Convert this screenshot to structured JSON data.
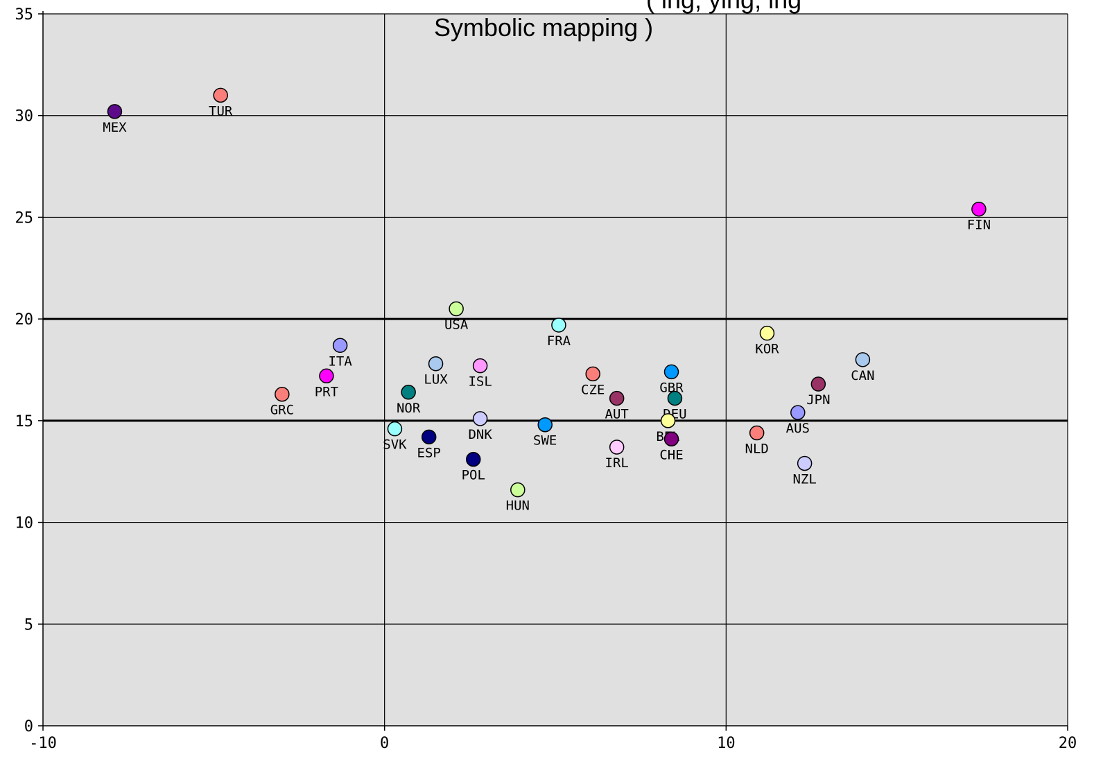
{
  "chart_data": {
    "type": "scatter",
    "title_lines": [
      "(         ing,       ying,       ing",
      "Symbolic mapping )"
    ],
    "xlabel": "",
    "ylabel": "",
    "xlim": [
      -10,
      20
    ],
    "ylim": [
      0,
      35
    ],
    "x_ticks": [
      -10,
      0,
      10,
      20
    ],
    "y_ticks": [
      0,
      5,
      10,
      15,
      20,
      25,
      30,
      35
    ],
    "grid": true,
    "reference_lines_y": [
      15,
      20
    ],
    "points": [
      {
        "label": "MEX",
        "x": -7.9,
        "y": 30.2,
        "color": "#5c0a8a"
      },
      {
        "label": "TUR",
        "x": -4.8,
        "y": 31.0,
        "color": "#fa7f7a"
      },
      {
        "label": "FIN",
        "x": 17.4,
        "y": 25.4,
        "color": "#ff00ff"
      },
      {
        "label": "USA",
        "x": 2.1,
        "y": 20.5,
        "color": "#ccff99"
      },
      {
        "label": "FRA",
        "x": 5.1,
        "y": 19.7,
        "color": "#99ffff"
      },
      {
        "label": "KOR",
        "x": 11.2,
        "y": 19.3,
        "color": "#ffff99"
      },
      {
        "label": "ITA",
        "x": -1.3,
        "y": 18.7,
        "color": "#9999ff"
      },
      {
        "label": "CAN",
        "x": 14.0,
        "y": 18.0,
        "color": "#a9c9ee"
      },
      {
        "label": "LUX",
        "x": 1.5,
        "y": 17.8,
        "color": "#a9c9ee"
      },
      {
        "label": "ISL",
        "x": 2.8,
        "y": 17.7,
        "color": "#ff99ff"
      },
      {
        "label": "GBR",
        "x": 8.4,
        "y": 17.4,
        "color": "#0099ff"
      },
      {
        "label": "CZE",
        "x": 6.1,
        "y": 17.3,
        "color": "#fa7f7a"
      },
      {
        "label": "PRT",
        "x": -1.7,
        "y": 17.2,
        "color": "#ff00ff"
      },
      {
        "label": "JPN",
        "x": 12.7,
        "y": 16.8,
        "color": "#993366"
      },
      {
        "label": "NOR",
        "x": 0.7,
        "y": 16.4,
        "color": "#008080"
      },
      {
        "label": "GRC",
        "x": -3.0,
        "y": 16.3,
        "color": "#fa7f7a"
      },
      {
        "label": "DEU",
        "x": 8.5,
        "y": 16.1,
        "color": "#008080"
      },
      {
        "label": "AUT",
        "x": 6.8,
        "y": 16.1,
        "color": "#993366"
      },
      {
        "label": "AUS",
        "x": 12.1,
        "y": 15.4,
        "color": "#9999ff"
      },
      {
        "label": "DNK",
        "x": 2.8,
        "y": 15.1,
        "color": "#ccccff"
      },
      {
        "label": "BEL",
        "x": 8.3,
        "y": 15.0,
        "color": "#ffff99"
      },
      {
        "label": "SWE",
        "x": 4.7,
        "y": 14.8,
        "color": "#0099ff"
      },
      {
        "label": "SVK",
        "x": 0.3,
        "y": 14.6,
        "color": "#99ffff"
      },
      {
        "label": "NLD",
        "x": 10.9,
        "y": 14.4,
        "color": "#fa7f7a"
      },
      {
        "label": "ESP",
        "x": 1.3,
        "y": 14.2,
        "color": "#000080"
      },
      {
        "label": "CHE",
        "x": 8.4,
        "y": 14.1,
        "color": "#800080"
      },
      {
        "label": "IRL",
        "x": 6.8,
        "y": 13.7,
        "color": "#ffccff"
      },
      {
        "label": "POL",
        "x": 2.6,
        "y": 13.1,
        "color": "#000080"
      },
      {
        "label": "NZL",
        "x": 12.3,
        "y": 12.9,
        "color": "#ccccff"
      },
      {
        "label": "HUN",
        "x": 3.9,
        "y": 11.6,
        "color": "#ccff99"
      }
    ],
    "colors": {
      "plot_background": "#e0e0e0",
      "grid": "#000000"
    }
  }
}
